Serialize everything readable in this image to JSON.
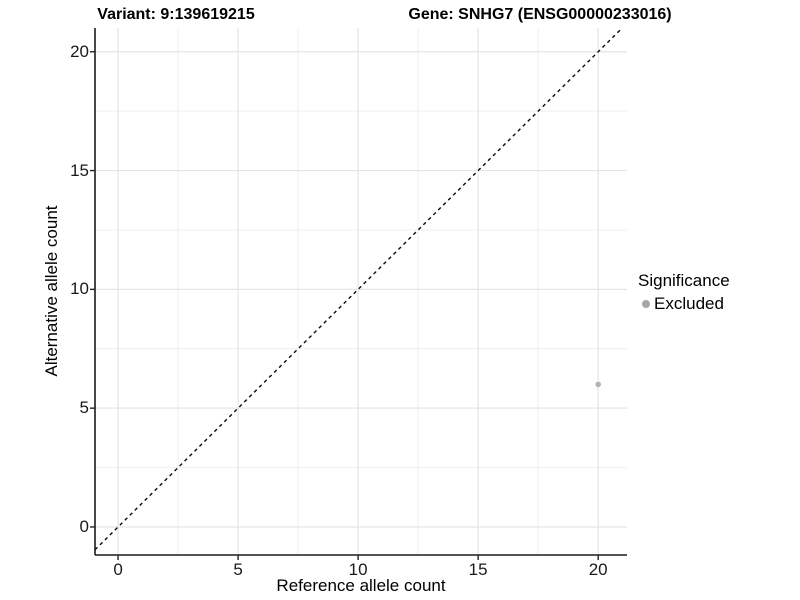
{
  "titles": {
    "variant": "Variant: 9:139619215",
    "gene": "Gene: SNHG7 (ENSG00000233016)"
  },
  "chart_data": {
    "type": "scatter",
    "xlabel": "Reference allele count",
    "ylabel": "Alternative allele count",
    "xlim": [
      -0.96,
      21.2
    ],
    "ylim": [
      -1.18,
      21.0
    ],
    "x_ticks": [
      0,
      5,
      10,
      15,
      20
    ],
    "y_ticks": [
      0,
      5,
      10,
      15,
      20
    ],
    "x_minor_gridlines": [
      2.5,
      7.5,
      12.5,
      17.5
    ],
    "y_minor_gridlines": [
      2.5,
      7.5,
      12.5,
      17.5
    ],
    "grid": true,
    "identity_line": {
      "equation": "y = x",
      "style": "dashed",
      "color": "#0a0a0a"
    },
    "points": [
      {
        "x": 20,
        "y": 6,
        "series": "Excluded",
        "color": "#b3b3b3"
      }
    ],
    "legend": {
      "position": "right",
      "title": "Significance",
      "entries": [
        {
          "label": "Excluded",
          "color": "#a6a6a6",
          "marker": "circle"
        }
      ]
    },
    "colors": {
      "axis_line": "#1a1a1a",
      "tick_mark": "#222222",
      "major_gridline": "#e5e5e5",
      "minor_gridline": "#efefef",
      "panel_background": "#ffffff"
    }
  }
}
